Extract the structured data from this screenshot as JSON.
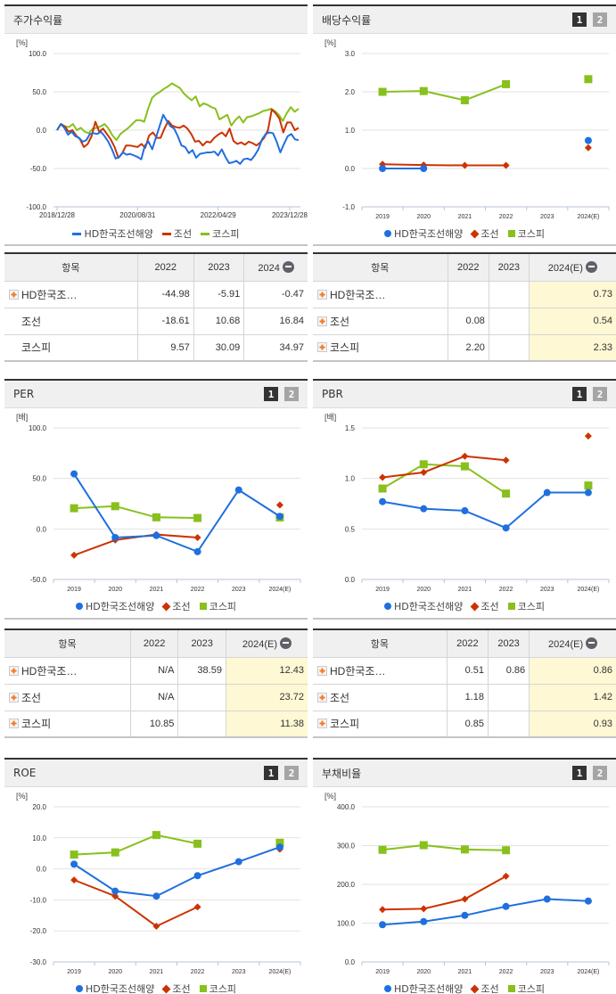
{
  "colors": {
    "series1": "#1f6fde",
    "series2": "#cc3300",
    "series3": "#88c01c",
    "estimate_bg": "#fef8d4"
  },
  "legend": {
    "s1": "HD한국조선해양",
    "s2": "조선",
    "s3": "코스피"
  },
  "pager": {
    "btn1": "1",
    "btn2": "2"
  },
  "charts": {
    "stock_return": {
      "title": "주가수익률",
      "unit": "[%]"
    },
    "dividend": {
      "title": "배당수익률",
      "unit": "[%]"
    },
    "per": {
      "title": "PER",
      "unit": "[배]"
    },
    "pbr": {
      "title": "PBR",
      "unit": "[배]"
    },
    "roe": {
      "title": "ROE",
      "unit": "[%]"
    },
    "debt": {
      "title": "부채비율",
      "unit": "[%]"
    }
  },
  "tables": {
    "stock_return": {
      "headers": [
        "항목",
        "2022",
        "2023",
        "2024"
      ],
      "rows": [
        {
          "label": "HD한국조…",
          "v": [
            "-44.98",
            "-5.91",
            "-0.47"
          ]
        },
        {
          "label": "조선",
          "v": [
            "-18.61",
            "10.68",
            "16.84"
          ]
        },
        {
          "label": "코스피",
          "v": [
            "9.57",
            "30.09",
            "34.97"
          ]
        }
      ]
    },
    "dividend": {
      "headers": [
        "항목",
        "2022",
        "2023",
        "2024(E)"
      ],
      "rows": [
        {
          "label": "HD한국조…",
          "v": [
            "",
            "",
            "0.73"
          ]
        },
        {
          "label": "조선",
          "v": [
            "0.08",
            "",
            "0.54"
          ]
        },
        {
          "label": "코스피",
          "v": [
            "2.20",
            "",
            "2.33"
          ]
        }
      ]
    },
    "per": {
      "headers": [
        "항목",
        "2022",
        "2023",
        "2024(E)"
      ],
      "rows": [
        {
          "label": "HD한국조…",
          "v": [
            "N/A",
            "38.59",
            "12.43"
          ]
        },
        {
          "label": "조선",
          "v": [
            "N/A",
            "",
            "23.72"
          ]
        },
        {
          "label": "코스피",
          "v": [
            "10.85",
            "",
            "11.38"
          ]
        }
      ]
    },
    "pbr": {
      "headers": [
        "항목",
        "2022",
        "2023",
        "2024(E)"
      ],
      "rows": [
        {
          "label": "HD한국조…",
          "v": [
            "0.51",
            "0.86",
            "0.86"
          ]
        },
        {
          "label": "조선",
          "v": [
            "1.18",
            "",
            "1.42"
          ]
        },
        {
          "label": "코스피",
          "v": [
            "0.85",
            "",
            "0.93"
          ]
        }
      ]
    }
  },
  "chart_data": [
    {
      "id": "stock_return",
      "type": "line",
      "title": "주가수익률",
      "ylabel": "[%]",
      "ylim": [
        -100,
        100
      ],
      "yticks": [
        "100.0",
        "50.0",
        "0.0",
        "-50.0",
        "-100.0"
      ],
      "xticks": [
        "2018/12/28",
        "2020/08/31",
        "2022/04/29",
        "2023/12/28"
      ],
      "grid": true,
      "legend_position": "bottom",
      "series": [
        {
          "name": "HD한국조선해양",
          "values": [
            0,
            8,
            3,
            -6,
            -2,
            -8,
            -10,
            -15,
            -13,
            -5,
            -4,
            -5,
            -2,
            -8,
            -15,
            -25,
            -37,
            -35,
            -29,
            -32,
            -31,
            -33,
            -35,
            -38,
            -20,
            -15,
            -25,
            -10,
            5,
            20,
            12,
            5,
            2,
            -8,
            -20,
            -22,
            -30,
            -26,
            -36,
            -31,
            -30,
            -29,
            -29,
            -28,
            -33,
            -25,
            -35,
            -43,
            -42,
            -40,
            -44,
            -38,
            -37,
            -39,
            -33,
            -25,
            -12,
            -5,
            -3,
            -4,
            -15,
            -29,
            -18,
            -8,
            -5,
            -12,
            -13
          ]
        },
        {
          "name": "조선",
          "values": [
            0,
            8,
            5,
            -2,
            0,
            -7,
            -12,
            -22,
            -18,
            -8,
            11,
            -2,
            2,
            -5,
            -12,
            -22,
            -36,
            -30,
            -20,
            -20,
            -21,
            -22,
            -18,
            -23,
            -7,
            -3,
            -10,
            -10,
            2,
            12,
            6,
            4,
            3,
            6,
            2,
            -5,
            -15,
            -14,
            -20,
            -15,
            -16,
            -10,
            -6,
            -3,
            -8,
            2,
            -14,
            -18,
            -16,
            -19,
            -15,
            -17,
            -20,
            -16,
            -10,
            0,
            27,
            22,
            15,
            -3,
            10,
            10,
            0,
            3
          ]
        },
        {
          "name": "코스피",
          "values": [
            0,
            8,
            5,
            4,
            8,
            0,
            3,
            -2,
            -4,
            2,
            3,
            5,
            8,
            2,
            -7,
            -13,
            -5,
            -1,
            3,
            8,
            13,
            13,
            11,
            28,
            42,
            47,
            50,
            54,
            57,
            61,
            58,
            55,
            48,
            43,
            39,
            44,
            31,
            35,
            33,
            30,
            28,
            14,
            17,
            20,
            6,
            13,
            18,
            10,
            17,
            18,
            20,
            22,
            25,
            26,
            28,
            25,
            20,
            12,
            22,
            30,
            24,
            28
          ]
        }
      ]
    },
    {
      "id": "dividend",
      "type": "line",
      "title": "배당수익률",
      "ylabel": "[%]",
      "ylim": [
        -1,
        3
      ],
      "categories": [
        "2019",
        "2020",
        "2021",
        "2022",
        "2023",
        "2024(E)"
      ],
      "series": [
        {
          "name": "HD한국조선해양",
          "values": [
            0.0,
            0.0,
            null,
            null,
            null,
            0.73
          ]
        },
        {
          "name": "조선",
          "values": [
            0.11,
            0.09,
            0.08,
            0.08,
            null,
            0.54
          ]
        },
        {
          "name": "코스피",
          "values": [
            2.0,
            2.02,
            1.78,
            2.2,
            null,
            2.33
          ]
        }
      ]
    },
    {
      "id": "per",
      "type": "line",
      "title": "PER",
      "ylabel": "[배]",
      "ylim": [
        -50,
        100
      ],
      "categories": [
        "2019",
        "2020",
        "2021",
        "2022",
        "2023",
        "2024(E)"
      ],
      "series": [
        {
          "name": "HD한국조선해양",
          "values": [
            54.5,
            -8.5,
            -6.5,
            -22.5,
            38.59,
            12.43
          ]
        },
        {
          "name": "조선",
          "values": [
            -26,
            -11,
            -5.5,
            -8.5,
            null,
            23.72
          ]
        },
        {
          "name": "코스피",
          "values": [
            20.5,
            22.5,
            11.5,
            10.85,
            null,
            11.38
          ]
        }
      ]
    },
    {
      "id": "pbr",
      "type": "line",
      "title": "PBR",
      "ylabel": "[배]",
      "ylim": [
        0,
        1.5
      ],
      "categories": [
        "2019",
        "2020",
        "2021",
        "2022",
        "2023",
        "2024(E)"
      ],
      "series": [
        {
          "name": "HD한국조선해양",
          "values": [
            0.77,
            0.7,
            0.68,
            0.51,
            0.86,
            0.86
          ]
        },
        {
          "name": "조선",
          "values": [
            1.01,
            1.06,
            1.22,
            1.18,
            null,
            1.42
          ]
        },
        {
          "name": "코스피",
          "values": [
            0.9,
            1.14,
            1.12,
            0.85,
            null,
            0.93
          ]
        }
      ]
    },
    {
      "id": "roe",
      "type": "line",
      "title": "ROE",
      "ylabel": "[%]",
      "ylim": [
        -30,
        20
      ],
      "categories": [
        "2019",
        "2020",
        "2021",
        "2022",
        "2023",
        "2024(E)"
      ],
      "series": [
        {
          "name": "HD한국조선해양",
          "values": [
            1.5,
            -7.2,
            -8.8,
            -2.2,
            2.3,
            7.0
          ]
        },
        {
          "name": "조선",
          "values": [
            -3.6,
            -8.8,
            -18.5,
            -12.3,
            null,
            6.3
          ]
        },
        {
          "name": "코스피",
          "values": [
            4.6,
            5.3,
            10.9,
            8.1,
            null,
            8.4
          ]
        }
      ]
    },
    {
      "id": "debt",
      "type": "line",
      "title": "부채비율",
      "ylabel": "[%]",
      "ylim": [
        0,
        400
      ],
      "categories": [
        "2019",
        "2020",
        "2021",
        "2022",
        "2023",
        "2024(E)"
      ],
      "series": [
        {
          "name": "HD한국조선해양",
          "values": [
            96,
            104,
            120,
            143,
            162,
            157
          ]
        },
        {
          "name": "조선",
          "values": [
            135,
            137,
            162,
            221,
            null,
            null
          ]
        },
        {
          "name": "코스피",
          "values": [
            289,
            301,
            290,
            288,
            null,
            null
          ]
        }
      ]
    }
  ]
}
